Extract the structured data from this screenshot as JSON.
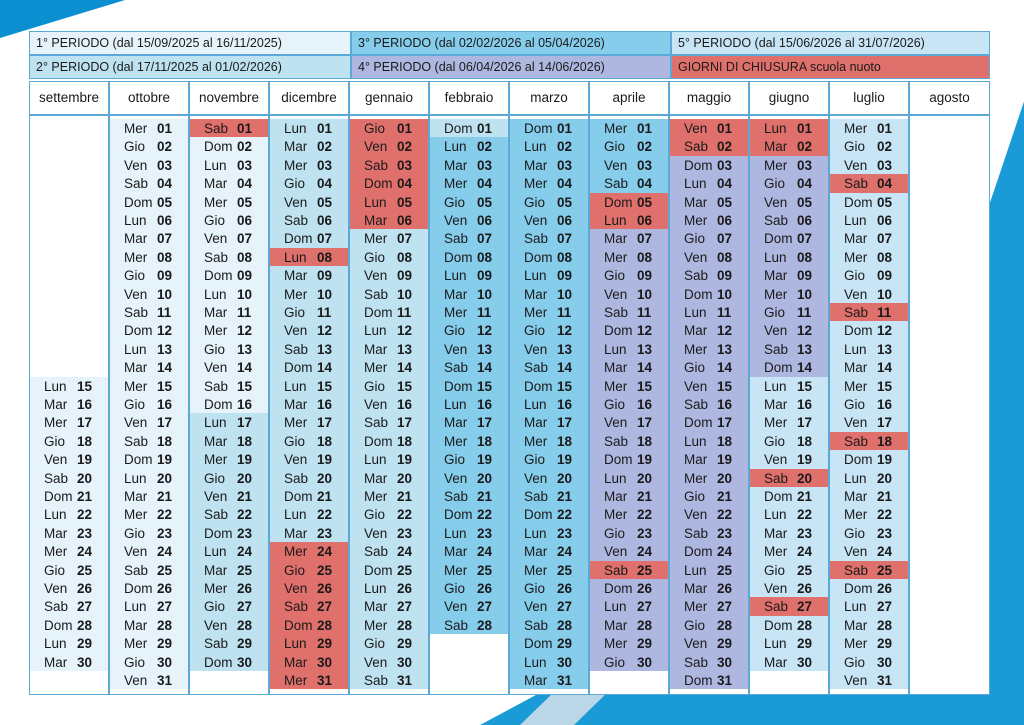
{
  "legend": {
    "p1": "1° PERIODO (dal 15/09/2025 al 16/11/2025)",
    "p3": "3° PERIODO (dal 02/02/2026 al 05/04/2026)",
    "p5": "5° PERIODO (dal 15/06/2026 al 31/07/2026)",
    "p2": "2° PERIODO (dal 17/11/2025 al 01/02/2026)",
    "p4": "4° PERIODO (dal 06/04/2026 al 14/06/2026)",
    "closure": "GIORNI DI CHIUSURA scuola nuoto"
  },
  "colors": {
    "p1": "#e6f3fa",
    "p2": "#bfe2f1",
    "p3": "#86cdec",
    "p4": "#aeb7e0",
    "p5": "#c8e5f6",
    "closed": "#e0706c",
    "none": "#ffffff",
    "border": "#5aa9d6"
  },
  "months": [
    {
      "name": "settembre",
      "start": "Lun",
      "first": 15,
      "last": 30,
      "closed": [],
      "period": "p1"
    },
    {
      "name": "ottobre",
      "start": "Mer",
      "first": 1,
      "last": 31,
      "closed": [],
      "period": "p1"
    },
    {
      "name": "novembre",
      "start": "Sab",
      "first": 1,
      "last": 30,
      "closed": [
        1
      ],
      "period": "p1",
      "switch": 17,
      "switch_period": "p2"
    },
    {
      "name": "dicembre",
      "start": "Lun",
      "first": 1,
      "last": 31,
      "closed": [
        8,
        24,
        25,
        26,
        27,
        28,
        29,
        30,
        31
      ],
      "period": "p2"
    },
    {
      "name": "gennaio",
      "start": "Gio",
      "first": 1,
      "last": 31,
      "closed": [
        1,
        2,
        3,
        4,
        5,
        6
      ],
      "period": "p2"
    },
    {
      "name": "febbraio",
      "start": "Dom",
      "first": 1,
      "last": 28,
      "closed": [],
      "period": "p2",
      "switch": 2,
      "switch_period": "p3"
    },
    {
      "name": "marzo",
      "start": "Dom",
      "first": 1,
      "last": 31,
      "closed": [],
      "period": "p3"
    },
    {
      "name": "aprile",
      "start": "Mer",
      "first": 1,
      "last": 30,
      "closed": [
        5,
        6,
        25
      ],
      "period": "p3",
      "switch": 6,
      "switch_period": "p4"
    },
    {
      "name": "maggio",
      "start": "Ven",
      "first": 1,
      "last": 31,
      "closed": [
        1,
        2
      ],
      "period": "p4"
    },
    {
      "name": "giugno",
      "start": "Lun",
      "first": 1,
      "last": 30,
      "closed": [
        1,
        2,
        20,
        27
      ],
      "period": "p4",
      "switch": 15,
      "switch_period": "p5"
    },
    {
      "name": "luglio",
      "start": "Mer",
      "first": 1,
      "last": 31,
      "closed": [
        4,
        11,
        18,
        25
      ],
      "period": "p5"
    },
    {
      "name": "agosto",
      "start": "",
      "first": 0,
      "last": 0,
      "closed": [],
      "period": "none"
    }
  ],
  "weekdays": [
    "Lun",
    "Mar",
    "Mer",
    "Gio",
    "Ven",
    "Sab",
    "Dom"
  ]
}
